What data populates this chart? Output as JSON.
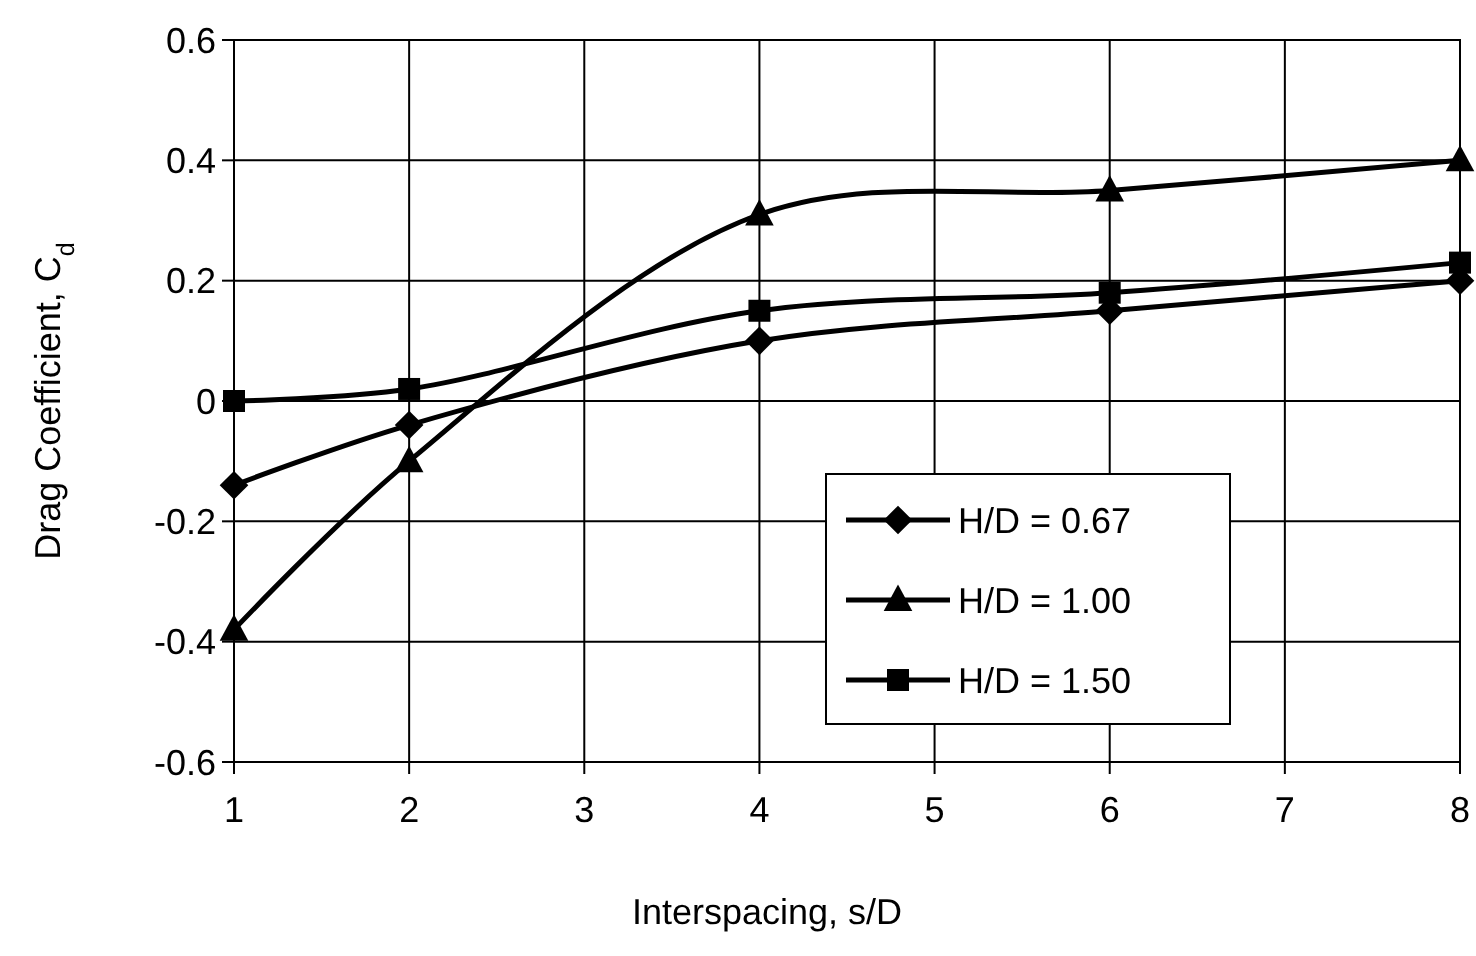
{
  "chart_data": {
    "type": "line",
    "xlabel": "Interspacing, s/D",
    "ylabel": "Drag Coefficient, C$_{d}$",
    "x": [
      1,
      2,
      4,
      6,
      8
    ],
    "series": [
      {
        "name": "H/D = 0.67",
        "color": "#000000",
        "marker": "diamond",
        "values": [
          -0.14,
          -0.04,
          0.1,
          0.15,
          0.2
        ]
      },
      {
        "name": "H/D = 1.00",
        "color": "#000000",
        "marker": "triangle",
        "values": [
          -0.38,
          -0.1,
          0.31,
          0.35,
          0.4
        ]
      },
      {
        "name": "H/D = 1.50",
        "color": "#000000",
        "marker": "square",
        "values": [
          0,
          0.02,
          0.15,
          0.18,
          0.23
        ]
      }
    ],
    "xlim": [
      1,
      8
    ],
    "xticks": [
      1,
      2,
      3,
      4,
      5,
      6,
      7,
      8
    ],
    "ylim": [
      -0.6,
      0.6
    ],
    "yticks": [
      {
        "value": -0.6,
        "label": "-0.6"
      },
      {
        "value": -0.4,
        "label": "-0.4"
      },
      {
        "value": -0.2,
        "label": "-0.2"
      },
      0,
      {
        "value": 0.2,
        "label": "0.2"
      },
      {
        "value": 0.4,
        "label": "0.4"
      },
      {
        "value": 0.6,
        "label": "0.6"
      }
    ],
    "grid": true,
    "legend": "right",
    "line_style": "solid"
  }
}
